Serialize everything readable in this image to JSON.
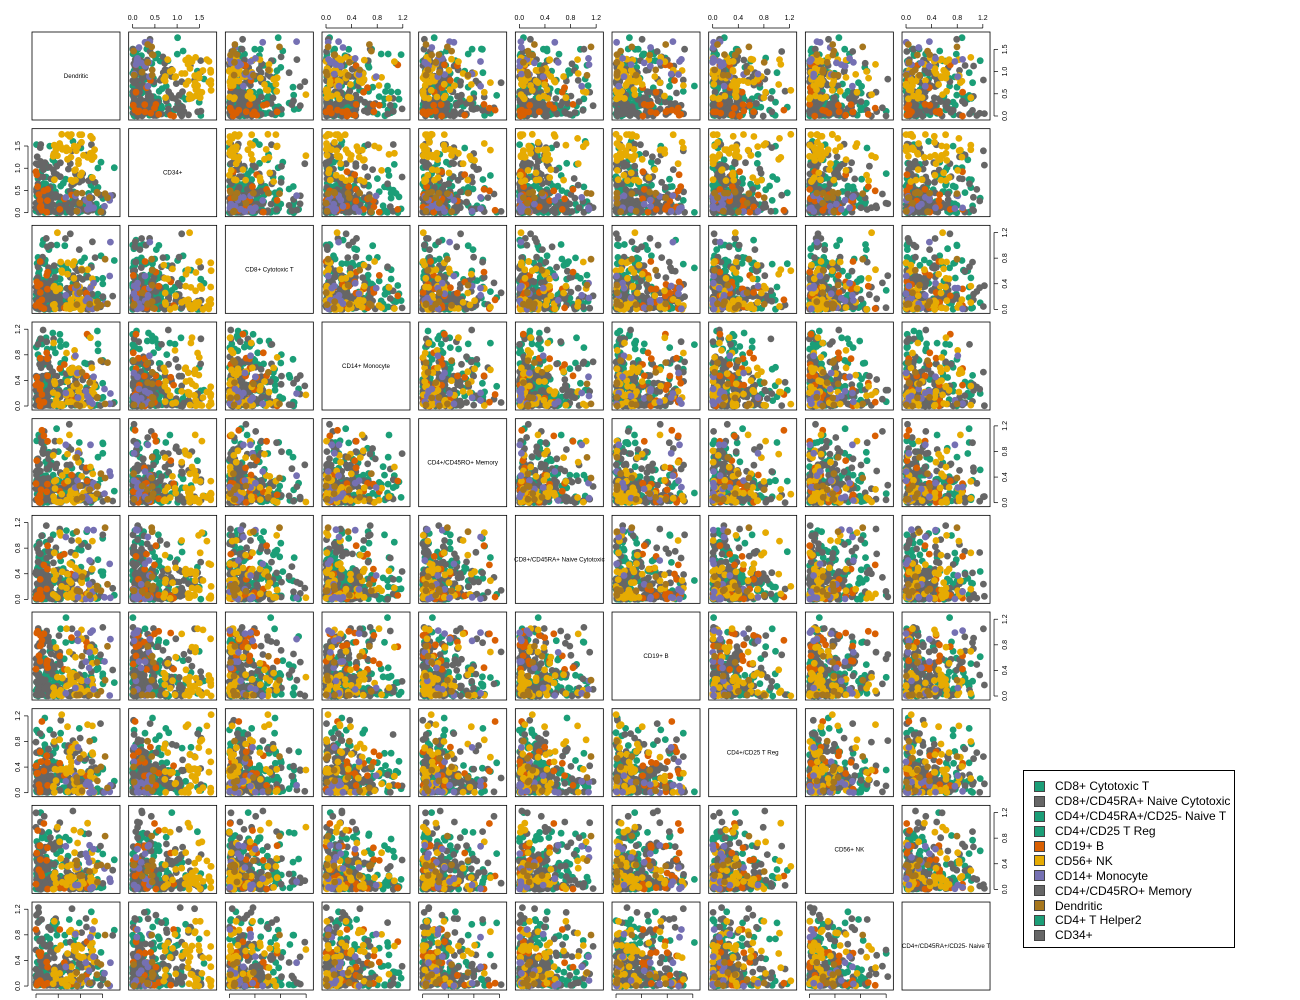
{
  "chart_data": {
    "type": "scatter",
    "layout": "pairs-matrix",
    "variables": [
      "Dendritic",
      "CD34+",
      "CD8+ Cytotoxic T",
      "CD14+ Monocyte",
      "CD4+/CD45RO+ Memory",
      "CD8+/CD45RA+ Naive Cytotoxic",
      "CD19+ B",
      "CD4+/CD25 T Reg",
      "CD56+ NK",
      "CD4+/CD45RA+/CD25- Naive T"
    ],
    "ranges": {
      "Dendritic": [
        0,
        1.8
      ],
      "CD34+": [
        0,
        1.8
      ],
      "CD8+ Cytotoxic T": [
        0,
        1.25
      ],
      "CD14+ Monocyte": [
        0,
        1.25
      ],
      "CD4+/CD45RO+ Memory": [
        0,
        1.25
      ],
      "CD8+/CD45RA+ Naive Cytotoxic": [
        0,
        1.25
      ],
      "CD19+ B": [
        0,
        1.25
      ],
      "CD4+/CD25 T Reg": [
        0,
        1.25
      ],
      "CD56+ NK": [
        0,
        1.25
      ],
      "CD4+/CD45RA+/CD25- Naive T": [
        0,
        1.25
      ]
    },
    "axis_ticks": {
      "wide": [
        "0.0",
        "0.5",
        "1.0",
        "1.5"
      ],
      "narrow": [
        "0.0",
        "0.4",
        "0.8",
        "1.2"
      ]
    },
    "legend": {
      "placement": "bottom-right",
      "entries": [
        {
          "label": "CD8+ Cytotoxic T",
          "color": "#1b9e77"
        },
        {
          "label": "CD8+/CD45RA+ Naive Cytotoxic",
          "color": "#666666"
        },
        {
          "label": "CD4+/CD45RA+/CD25- Naive T",
          "color": "#1b9e77"
        },
        {
          "label": "CD4+/CD25 T Reg",
          "color": "#1b9e77"
        },
        {
          "label": "CD19+ B",
          "color": "#d95f02"
        },
        {
          "label": "CD56+ NK",
          "color": "#e6ab02"
        },
        {
          "label": "CD14+ Monocyte",
          "color": "#7570b3"
        },
        {
          "label": "CD4+/CD45RO+ Memory",
          "color": "#666666"
        },
        {
          "label": "Dendritic",
          "color": "#a6761d"
        },
        {
          "label": "CD4+ T Helper2",
          "color": "#1b9e77"
        },
        {
          "label": "CD34+",
          "color": "#666666"
        }
      ]
    },
    "grid": false
  }
}
